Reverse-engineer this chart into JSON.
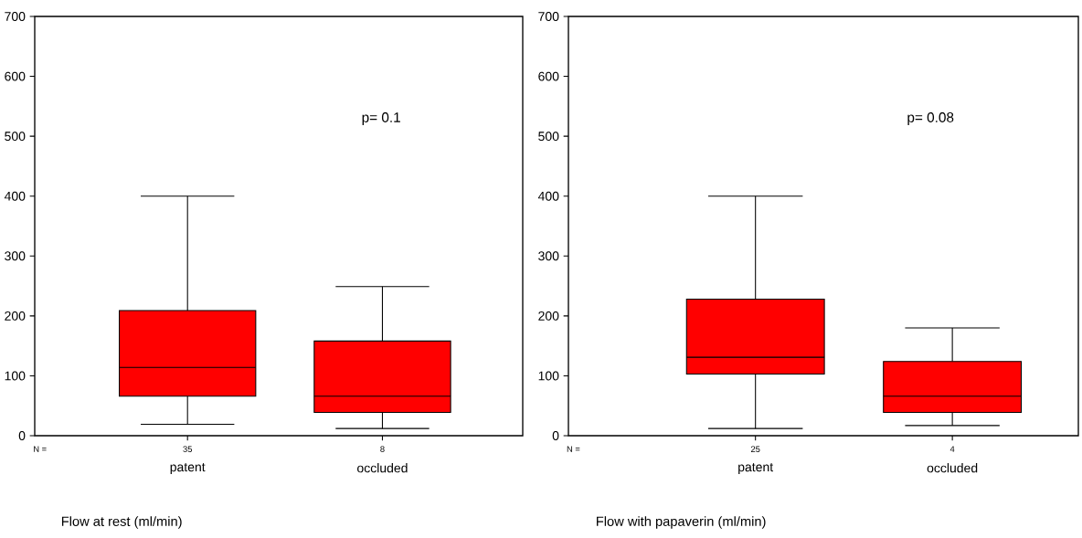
{
  "chart_data": [
    {
      "type": "box",
      "xlabel": "Flow at rest (ml/min)",
      "categories": [
        "patent",
        "occluded"
      ],
      "color": "#ff0000",
      "ylim": [
        0,
        700
      ],
      "yticks": [
        0,
        100,
        200,
        300,
        400,
        500,
        600,
        700
      ],
      "boxes": [
        {
          "low": 19,
          "q1": 66,
          "median": 114,
          "q3": 209,
          "high": 400
        },
        {
          "low": 12,
          "q1": 39,
          "median": 66,
          "q3": 158,
          "high": 249
        }
      ],
      "annotations": [
        "p= 0.1",
        "N =",
        "35",
        "8"
      ]
    },
    {
      "type": "box",
      "xlabel": "Flow with papaverin (ml/min)",
      "categories": [
        "patent",
        "occluded"
      ],
      "color": "#ff0000",
      "ylim": [
        0,
        700
      ],
      "yticks": [
        0,
        100,
        200,
        300,
        400,
        500,
        600,
        700
      ],
      "boxes": [
        {
          "low": 12,
          "q1": 103,
          "median": 131,
          "q3": 228,
          "high": 400
        },
        {
          "low": 17,
          "q1": 39,
          "median": 66,
          "q3": 124,
          "high": 180
        }
      ],
      "annotations": [
        "p= 0.08",
        "N =",
        "25",
        "4"
      ]
    }
  ]
}
